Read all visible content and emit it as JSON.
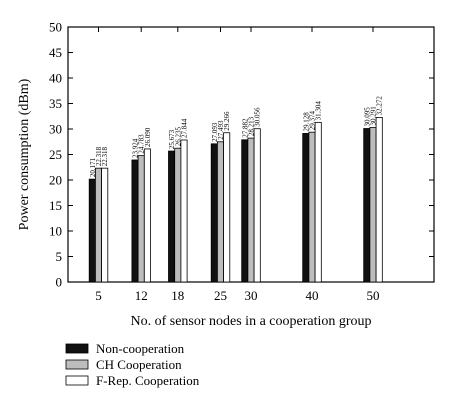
{
  "chart_data": {
    "type": "bar",
    "xlabel": "No. of sensor nodes in a cooperation group",
    "ylabel": "Power consumption (dBm)",
    "ylim": [
      0,
      50
    ],
    "yticks": [
      0,
      5,
      10,
      15,
      20,
      25,
      30,
      35,
      40,
      45,
      50
    ],
    "x_range": [
      0,
      60
    ],
    "categories": [
      "5",
      "12",
      "18",
      "25",
      "30",
      "40",
      "50"
    ],
    "x": [
      5,
      12,
      18,
      25,
      30,
      40,
      50
    ],
    "grid": false,
    "legend_position": "bottom-left",
    "series": [
      {
        "name": "Non-cooperation",
        "color": "#111111",
        "values": [
          20.171,
          23.924,
          25.673,
          27.093,
          27.882,
          29.128,
          30.095
        ],
        "labels": [
          "20.171",
          "23.924",
          "25.673",
          "27.093",
          "27.882",
          "29.128",
          "30.095"
        ]
      },
      {
        "name": "CH Cooperation",
        "color": "#bdbdbd",
        "values": [
          22.318,
          24.783,
          26.235,
          27.493,
          28.213,
          29.374,
          30.291
        ],
        "labels": [
          "22.318",
          "24.783",
          "26.235",
          "27.493",
          "28.213",
          "29.374",
          "30.291"
        ]
      },
      {
        "name": "F-Rep. Cooperation",
        "color": "#ffffff",
        "values": [
          22.318,
          26.09,
          27.844,
          29.266,
          30.056,
          31.304,
          32.272
        ],
        "labels": [
          "22.318",
          "26.090",
          "27.844",
          "29.266",
          "30.056",
          "31.304",
          "32.272"
        ]
      }
    ]
  }
}
